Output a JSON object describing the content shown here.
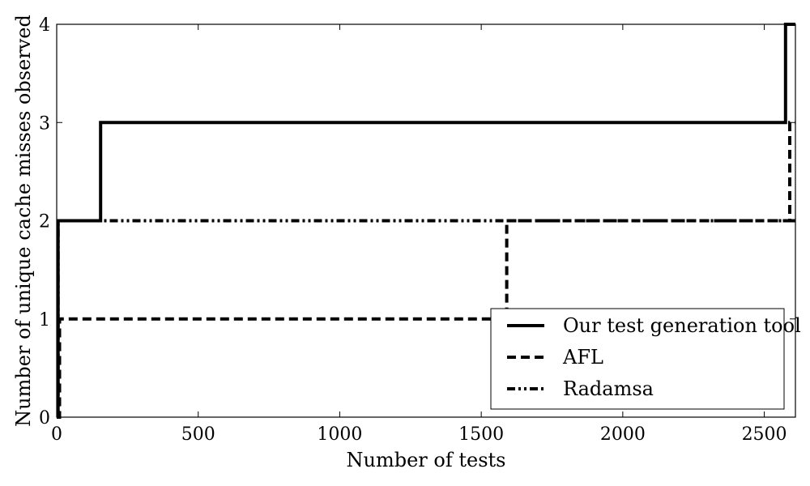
{
  "chart_data": {
    "type": "line",
    "title": "",
    "xlabel": "Number of tests",
    "ylabel": "Number of unique cache misses observed",
    "xlim": [
      0,
      2610
    ],
    "ylim": [
      0,
      4
    ],
    "x_ticks": [
      0,
      500,
      1000,
      1500,
      2000,
      2500
    ],
    "y_ticks": [
      0,
      1,
      2,
      3,
      4
    ],
    "grid": false,
    "legend_position": "bottom-right",
    "step": true,
    "series": [
      {
        "name": "Our test generation tool",
        "style": "solid",
        "color": "#000000",
        "points": [
          [
            0,
            0
          ],
          [
            5,
            2
          ],
          [
            155,
            3
          ],
          [
            2575,
            4
          ],
          [
            2610,
            4
          ]
        ]
      },
      {
        "name": "AFL",
        "style": "dashed",
        "color": "#000000",
        "points": [
          [
            0,
            0
          ],
          [
            10,
            1
          ],
          [
            1590,
            2
          ],
          [
            2590,
            3
          ],
          [
            2610,
            3
          ]
        ]
      },
      {
        "name": "Radamsa",
        "style": "dash-dot-dot",
        "color": "#000000",
        "points": [
          [
            0,
            0
          ],
          [
            5,
            2
          ],
          [
            2610,
            2
          ]
        ]
      }
    ]
  }
}
